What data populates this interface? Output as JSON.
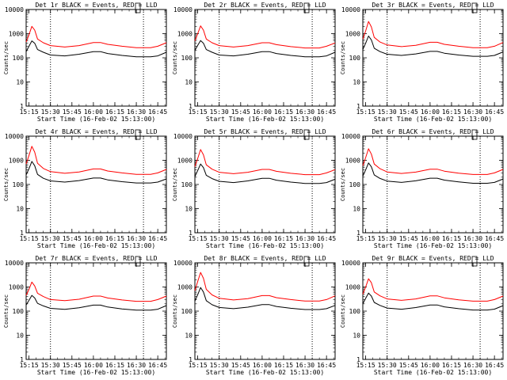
{
  "figure": {
    "colors": {
      "events": "#000000",
      "lld": "#ff0000",
      "axes": "#000000",
      "background": "#ffffff"
    }
  },
  "chart_data": [
    {
      "type": "line",
      "title": "Det 1r BLACK = Events, RED = LLD",
      "xlabel": "Start Time (16-Feb-02 15:13:00)",
      "ylabel": "Counts/sec",
      "yscale": "log",
      "ylim": [
        1,
        10000
      ],
      "xticks": [
        "15:15",
        "15:30",
        "15:45",
        "16:00",
        "16:15",
        "16:30",
        "16:45"
      ],
      "yticks": [
        "1",
        "10",
        "100",
        "1000",
        "10000"
      ],
      "vlines": [
        "15:30",
        "16:35"
      ],
      "x": [
        "15:13",
        "15:15",
        "15:17",
        "15:19",
        "15:21",
        "15:25",
        "15:30",
        "15:40",
        "15:50",
        "16:00",
        "16:05",
        "16:10",
        "16:20",
        "16:30",
        "16:40",
        "16:45",
        "16:51"
      ],
      "series": [
        {
          "values": [
            450,
            900,
            2000,
            1400,
            600,
            420,
            320,
            280,
            320,
            430,
            430,
            360,
            300,
            260,
            260,
            300,
            420
          ]
        },
        {
          "values": [
            180,
            300,
            500,
            400,
            220,
            170,
            130,
            120,
            140,
            180,
            180,
            150,
            125,
            110,
            110,
            120,
            170
          ]
        }
      ]
    },
    {
      "type": "line",
      "title": "Det 2r BLACK = Events, RED = LLD",
      "xlabel": "Start Time (16-Feb-02 15:13:00)",
      "ylabel": "Counts/sec",
      "yscale": "log",
      "ylim": [
        1,
        10000
      ],
      "xticks": [
        "15:15",
        "15:30",
        "15:45",
        "16:00",
        "16:15",
        "16:30",
        "16:45"
      ],
      "yticks": [
        "1",
        "10",
        "100",
        "1000",
        "10000"
      ],
      "vlines": [
        "15:30",
        "16:35"
      ],
      "x": [
        "15:13",
        "15:15",
        "15:17",
        "15:19",
        "15:21",
        "15:25",
        "15:30",
        "15:40",
        "15:50",
        "16:00",
        "16:05",
        "16:10",
        "16:20",
        "16:30",
        "16:40",
        "16:45",
        "16:51"
      ],
      "series": [
        {
          "values": [
            500,
            1000,
            2100,
            1400,
            600,
            420,
            320,
            280,
            320,
            420,
            420,
            350,
            290,
            255,
            255,
            300,
            410
          ]
        },
        {
          "values": [
            200,
            330,
            520,
            400,
            220,
            170,
            130,
            120,
            140,
            180,
            180,
            150,
            125,
            110,
            110,
            120,
            170
          ]
        }
      ]
    },
    {
      "type": "line",
      "title": "Det 3r BLACK = Events, RED = LLD",
      "xlabel": "Start Time (16-Feb-02 15:13:00)",
      "ylabel": "Counts/sec",
      "yscale": "log",
      "ylim": [
        1,
        10000
      ],
      "xticks": [
        "15:15",
        "15:30",
        "15:45",
        "16:00",
        "16:15",
        "16:30",
        "16:45"
      ],
      "yticks": [
        "1",
        "10",
        "100",
        "1000",
        "10000"
      ],
      "vlines": [
        "15:30",
        "16:35"
      ],
      "x": [
        "15:13",
        "15:15",
        "15:17",
        "15:19",
        "15:21",
        "15:25",
        "15:30",
        "15:40",
        "15:50",
        "16:00",
        "16:05",
        "16:10",
        "16:20",
        "16:30",
        "16:40",
        "16:45",
        "16:51"
      ],
      "series": [
        {
          "values": [
            600,
            1300,
            3200,
            1900,
            700,
            450,
            340,
            290,
            330,
            440,
            440,
            360,
            300,
            260,
            260,
            300,
            430
          ]
        },
        {
          "values": [
            220,
            400,
            800,
            550,
            250,
            180,
            140,
            125,
            145,
            185,
            185,
            155,
            130,
            115,
            115,
            125,
            175
          ]
        }
      ]
    },
    {
      "type": "line",
      "title": "Det 4r BLACK = Events, RED = LLD",
      "xlabel": "Start Time (16-Feb-02 15:13:00)",
      "ylabel": "Counts/sec",
      "yscale": "log",
      "ylim": [
        1,
        10000
      ],
      "xticks": [
        "15:15",
        "15:30",
        "15:45",
        "16:00",
        "16:15",
        "16:30",
        "16:45"
      ],
      "yticks": [
        "1",
        "10",
        "100",
        "1000",
        "10000"
      ],
      "vlines": [
        "15:30",
        "16:35"
      ],
      "x": [
        "15:13",
        "15:15",
        "15:17",
        "15:19",
        "15:21",
        "15:25",
        "15:30",
        "15:40",
        "15:50",
        "16:00",
        "16:05",
        "16:10",
        "16:20",
        "16:30",
        "16:40",
        "16:45",
        "16:51"
      ],
      "series": [
        {
          "values": [
            700,
            1600,
            3800,
            2200,
            750,
            460,
            340,
            290,
            330,
            440,
            440,
            360,
            300,
            260,
            260,
            300,
            420
          ]
        },
        {
          "values": [
            250,
            450,
            900,
            600,
            260,
            180,
            140,
            125,
            145,
            185,
            185,
            155,
            130,
            115,
            115,
            125,
            170
          ]
        }
      ]
    },
    {
      "type": "line",
      "title": "Det 5r BLACK = Events, RED = LLD",
      "xlabel": "Start Time (16-Feb-02 15:13:00)",
      "ylabel": "Counts/sec",
      "yscale": "log",
      "ylim": [
        1,
        10000
      ],
      "xticks": [
        "15:15",
        "15:30",
        "15:45",
        "16:00",
        "16:15",
        "16:30",
        "16:45"
      ],
      "yticks": [
        "1",
        "10",
        "100",
        "1000",
        "10000"
      ],
      "vlines": [
        "15:30",
        "16:35"
      ],
      "x": [
        "15:13",
        "15:15",
        "15:17",
        "15:19",
        "15:21",
        "15:25",
        "15:30",
        "15:40",
        "15:50",
        "16:00",
        "16:05",
        "16:10",
        "16:20",
        "16:30",
        "16:40",
        "16:45",
        "16:51"
      ],
      "series": [
        {
          "values": [
            550,
            1200,
            2800,
            1700,
            650,
            430,
            320,
            280,
            320,
            420,
            420,
            350,
            290,
            255,
            255,
            300,
            410
          ]
        },
        {
          "values": [
            210,
            380,
            700,
            500,
            240,
            175,
            135,
            120,
            140,
            180,
            180,
            150,
            125,
            110,
            110,
            120,
            165
          ]
        }
      ]
    },
    {
      "type": "line",
      "title": "Det 6r BLACK = Events, RED = LLD",
      "xlabel": "Start Time (16-Feb-02 15:13:00)",
      "ylabel": "Counts/sec",
      "yscale": "log",
      "ylim": [
        1,
        10000
      ],
      "xticks": [
        "15:15",
        "15:30",
        "15:45",
        "16:00",
        "16:15",
        "16:30",
        "16:45"
      ],
      "yticks": [
        "1",
        "10",
        "100",
        "1000",
        "10000"
      ],
      "vlines": [
        "15:30",
        "16:35"
      ],
      "x": [
        "15:13",
        "15:15",
        "15:17",
        "15:19",
        "15:21",
        "15:25",
        "15:30",
        "15:40",
        "15:50",
        "16:00",
        "16:05",
        "16:10",
        "16:20",
        "16:30",
        "16:40",
        "16:45",
        "16:51"
      ],
      "series": [
        {
          "values": [
            600,
            1300,
            3000,
            1800,
            700,
            450,
            330,
            285,
            325,
            430,
            430,
            355,
            295,
            258,
            258,
            300,
            420
          ]
        },
        {
          "values": [
            220,
            400,
            780,
            540,
            250,
            178,
            138,
            122,
            142,
            182,
            182,
            152,
            128,
            112,
            112,
            122,
            168
          ]
        }
      ]
    },
    {
      "type": "line",
      "title": "Det 7r BLACK = Events, RED = LLD",
      "xlabel": "Start Time (16-Feb-02 15:13:00)",
      "ylabel": "Counts/sec",
      "yscale": "log",
      "ylim": [
        1,
        10000
      ],
      "xticks": [
        "15:15",
        "15:30",
        "15:45",
        "16:00",
        "16:15",
        "16:30",
        "16:45"
      ],
      "yticks": [
        "1",
        "10",
        "100",
        "1000",
        "10000"
      ],
      "vlines": [
        "15:30",
        "16:35"
      ],
      "x": [
        "15:13",
        "15:15",
        "15:17",
        "15:19",
        "15:21",
        "15:25",
        "15:30",
        "15:40",
        "15:50",
        "16:00",
        "16:05",
        "16:10",
        "16:20",
        "16:30",
        "16:40",
        "16:45",
        "16:51"
      ],
      "series": [
        {
          "values": [
            450,
            800,
            1600,
            1100,
            550,
            400,
            300,
            270,
            310,
            420,
            420,
            350,
            290,
            255,
            255,
            300,
            420
          ]
        },
        {
          "values": [
            180,
            280,
            450,
            350,
            210,
            165,
            130,
            118,
            138,
            178,
            178,
            148,
            124,
            110,
            110,
            120,
            170
          ]
        }
      ]
    },
    {
      "type": "line",
      "title": "Det 8r BLACK = Events, RED = LLD",
      "xlabel": "Start Time (16-Feb-02 15:13:00)",
      "ylabel": "Counts/sec",
      "yscale": "log",
      "ylim": [
        1,
        10000
      ],
      "xticks": [
        "15:15",
        "15:30",
        "15:45",
        "16:00",
        "16:15",
        "16:30",
        "16:45"
      ],
      "yticks": [
        "1",
        "10",
        "100",
        "1000",
        "10000"
      ],
      "vlines": [
        "15:30",
        "16:35"
      ],
      "x": [
        "15:13",
        "15:15",
        "15:17",
        "15:19",
        "15:21",
        "15:25",
        "15:30",
        "15:40",
        "15:50",
        "16:00",
        "16:05",
        "16:10",
        "16:20",
        "16:30",
        "16:40",
        "16:45",
        "16:51"
      ],
      "series": [
        {
          "values": [
            700,
            1700,
            4000,
            2300,
            800,
            470,
            340,
            290,
            330,
            440,
            440,
            360,
            300,
            260,
            260,
            300,
            430
          ]
        },
        {
          "values": [
            260,
            480,
            950,
            620,
            270,
            185,
            142,
            126,
            146,
            186,
            186,
            156,
            131,
            116,
            116,
            126,
            172
          ]
        }
      ]
    },
    {
      "type": "line",
      "title": "Det 9r BLACK = Events, RED = LLD",
      "xlabel": "Start Time (16-Feb-02 15:13:00)",
      "ylabel": "Counts/sec",
      "yscale": "log",
      "ylim": [
        1,
        10000
      ],
      "xticks": [
        "15:15",
        "15:30",
        "15:45",
        "16:00",
        "16:15",
        "16:30",
        "16:45"
      ],
      "yticks": [
        "1",
        "10",
        "100",
        "1000",
        "10000"
      ],
      "vlines": [
        "15:30",
        "16:35"
      ],
      "x": [
        "15:13",
        "15:15",
        "15:17",
        "15:19",
        "15:21",
        "15:25",
        "15:30",
        "15:40",
        "15:50",
        "16:00",
        "16:05",
        "16:10",
        "16:20",
        "16:30",
        "16:40",
        "16:45",
        "16:51"
      ],
      "series": [
        {
          "values": [
            500,
            1000,
            2200,
            1500,
            620,
            430,
            320,
            280,
            320,
            430,
            430,
            355,
            295,
            258,
            258,
            300,
            420
          ]
        },
        {
          "values": [
            200,
            340,
            560,
            420,
            230,
            172,
            134,
            120,
            140,
            180,
            180,
            150,
            126,
            111,
            111,
            121,
            168
          ]
        }
      ]
    }
  ]
}
